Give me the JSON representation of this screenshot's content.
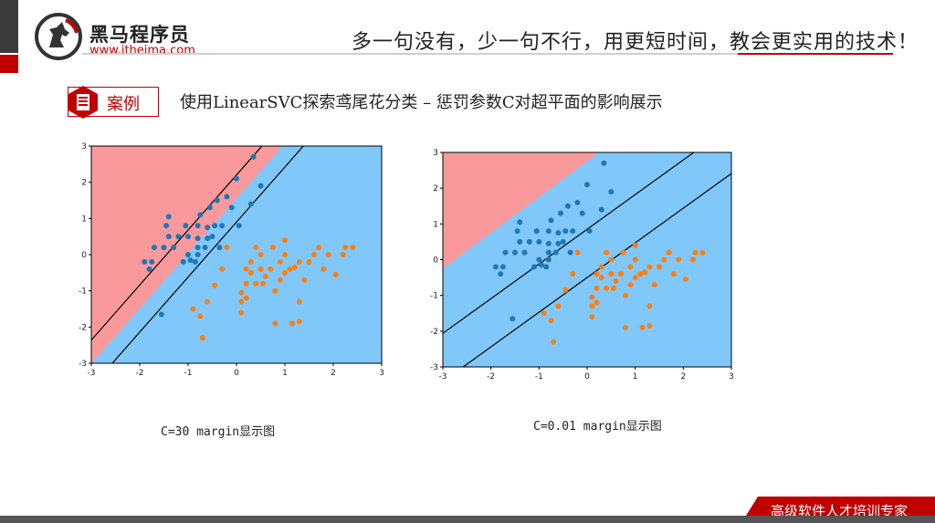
{
  "header": {
    "brand_cn": "黑马程序员",
    "brand_url": "www.itheima.com",
    "slogan": "多一句没有，少一句不行，用更短时间，教会更实用的技术！",
    "logo_icon": "horse-logo-icon"
  },
  "section": {
    "badge_label": "案例",
    "badge_icon": "document-icon",
    "title": "使用LinearSVC探索鸢尾花分类 – 惩罚参数C对超平面的影响展示"
  },
  "footer": {
    "tag": "高级软件人才培训专家"
  },
  "colors": {
    "accent": "#c00000",
    "region_red": "#f9999c",
    "region_blue": "#80c8fa",
    "point_blue": "#1f77b4",
    "point_orange": "#ff7f0e"
  },
  "chart_data": [
    {
      "type": "scatter",
      "caption": "C=30 margin显示图",
      "xlim": [
        -3,
        3
      ],
      "ylim": [
        -3,
        3
      ],
      "xticks": [
        "-3",
        "-2",
        "-1",
        "0",
        "1",
        "2",
        "3"
      ],
      "yticks": [
        "3",
        "2",
        "1",
        "0",
        "-1",
        "-2",
        "-3"
      ],
      "boundary": {
        "slope": 1.52,
        "intercept": 1.55
      },
      "margins": [
        {
          "slope": 1.52,
          "intercept": 2.2
        },
        {
          "slope": 1.52,
          "intercept": 0.9
        }
      ],
      "series": [
        {
          "color": "#1f77b4",
          "points": [
            [
              -1.9,
              -0.2
            ],
            [
              -1.8,
              -0.4
            ],
            [
              -1.75,
              -0.2
            ],
            [
              -1.7,
              0.2
            ],
            [
              -1.5,
              0.2
            ],
            [
              -1.4,
              0.5
            ],
            [
              -1.45,
              0.8
            ],
            [
              -1.4,
              1.05
            ],
            [
              -1.3,
              0.2
            ],
            [
              -1.2,
              0.5
            ],
            [
              -1.1,
              -0.2
            ],
            [
              -1.05,
              0.8
            ],
            [
              -1.0,
              0.0
            ],
            [
              -1.0,
              0.5
            ],
            [
              -0.95,
              -0.15
            ],
            [
              -0.85,
              -0.2
            ],
            [
              -0.8,
              0.0
            ],
            [
              -0.8,
              0.2
            ],
            [
              -0.8,
              0.45
            ],
            [
              -0.8,
              0.8
            ],
            [
              -0.75,
              1.1
            ],
            [
              -0.65,
              0.2
            ],
            [
              -0.6,
              0.45
            ],
            [
              -0.6,
              0.75
            ],
            [
              -0.55,
              1.3
            ],
            [
              -0.5,
              0.5
            ],
            [
              -0.45,
              0.8
            ],
            [
              -0.4,
              1.5
            ],
            [
              -0.35,
              0.2
            ],
            [
              -0.3,
              0.8
            ],
            [
              -0.2,
              1.6
            ],
            [
              -0.1,
              1.3
            ],
            [
              0.05,
              0.8
            ],
            [
              0.0,
              2.1
            ],
            [
              0.3,
              1.4
            ],
            [
              0.35,
              2.7
            ],
            [
              0.5,
              1.9
            ],
            [
              -1.55,
              -1.65
            ]
          ]
        },
        {
          "color": "#ff7f0e",
          "points": [
            [
              -0.7,
              -2.3
            ],
            [
              -0.75,
              -1.7
            ],
            [
              -0.9,
              -1.5
            ],
            [
              -0.6,
              -1.3
            ],
            [
              -0.45,
              -0.85
            ],
            [
              -0.3,
              -0.4
            ],
            [
              -0.2,
              0.2
            ],
            [
              0.1,
              -1.3
            ],
            [
              0.1,
              -1.6
            ],
            [
              0.2,
              -1.2
            ],
            [
              0.1,
              -1.05
            ],
            [
              0.2,
              -0.8
            ],
            [
              0.2,
              -0.4
            ],
            [
              0.3,
              -0.5
            ],
            [
              0.3,
              -0.2
            ],
            [
              0.4,
              0.2
            ],
            [
              0.4,
              -0.8
            ],
            [
              0.5,
              -0.4
            ],
            [
              0.5,
              0.0
            ],
            [
              0.55,
              -0.8
            ],
            [
              0.6,
              -0.6
            ],
            [
              0.7,
              -0.4
            ],
            [
              0.75,
              0.2
            ],
            [
              0.8,
              -1.0
            ],
            [
              0.9,
              -0.2
            ],
            [
              0.9,
              -0.7
            ],
            [
              1.0,
              0.4
            ],
            [
              1.0,
              0.0
            ],
            [
              1.0,
              -0.5
            ],
            [
              1.1,
              -0.4
            ],
            [
              1.2,
              -0.35
            ],
            [
              1.3,
              -0.2
            ],
            [
              1.3,
              -1.3
            ],
            [
              1.4,
              -0.7
            ],
            [
              0.8,
              -1.9
            ],
            [
              1.15,
              -1.9
            ],
            [
              1.3,
              -1.85
            ],
            [
              1.5,
              -0.2
            ],
            [
              1.6,
              0.0
            ],
            [
              1.7,
              0.2
            ],
            [
              1.8,
              -0.4
            ],
            [
              1.9,
              0.0
            ],
            [
              2.05,
              -0.55
            ],
            [
              2.2,
              0.0
            ],
            [
              2.25,
              0.2
            ],
            [
              2.4,
              0.2
            ]
          ]
        }
      ]
    },
    {
      "type": "scatter",
      "caption": "C=0.01 margin显示图",
      "xlim": [
        -3,
        3
      ],
      "ylim": [
        -3,
        3
      ],
      "xticks": [
        "-3",
        "-2",
        "-1",
        "0",
        "1",
        "2",
        "3"
      ],
      "yticks": [
        "3",
        "2",
        "1",
        "0",
        "-1",
        "-2",
        "-3"
      ],
      "boundary": {
        "slope": 1.0,
        "intercept": 2.75
      },
      "margins": [
        {
          "slope": 0.97,
          "intercept": 0.85
        },
        {
          "slope": 0.97,
          "intercept": -0.5
        }
      ],
      "series": [
        {
          "color": "#1f77b4",
          "points": [
            [
              -1.9,
              -0.2
            ],
            [
              -1.8,
              -0.4
            ],
            [
              -1.75,
              -0.2
            ],
            [
              -1.7,
              0.2
            ],
            [
              -1.5,
              0.2
            ],
            [
              -1.4,
              0.5
            ],
            [
              -1.45,
              0.8
            ],
            [
              -1.4,
              1.05
            ],
            [
              -1.3,
              0.2
            ],
            [
              -1.2,
              0.5
            ],
            [
              -1.1,
              -0.2
            ],
            [
              -1.05,
              0.8
            ],
            [
              -1.0,
              0.0
            ],
            [
              -1.0,
              0.5
            ],
            [
              -0.95,
              -0.15
            ],
            [
              -0.85,
              -0.2
            ],
            [
              -0.8,
              0.0
            ],
            [
              -0.8,
              0.2
            ],
            [
              -0.8,
              0.45
            ],
            [
              -0.8,
              0.8
            ],
            [
              -0.75,
              1.1
            ],
            [
              -0.65,
              0.2
            ],
            [
              -0.6,
              0.45
            ],
            [
              -0.6,
              0.75
            ],
            [
              -0.55,
              1.3
            ],
            [
              -0.5,
              0.5
            ],
            [
              -0.45,
              0.8
            ],
            [
              -0.4,
              1.5
            ],
            [
              -0.35,
              0.2
            ],
            [
              -0.3,
              0.8
            ],
            [
              -0.2,
              1.6
            ],
            [
              -0.1,
              1.3
            ],
            [
              0.05,
              0.8
            ],
            [
              0.0,
              2.1
            ],
            [
              0.3,
              1.4
            ],
            [
              0.35,
              2.7
            ],
            [
              0.5,
              1.9
            ],
            [
              -1.55,
              -1.65
            ]
          ]
        },
        {
          "color": "#ff7f0e",
          "points": [
            [
              -0.7,
              -2.3
            ],
            [
              -0.75,
              -1.7
            ],
            [
              -0.9,
              -1.5
            ],
            [
              -0.6,
              -1.3
            ],
            [
              -0.45,
              -0.85
            ],
            [
              -0.3,
              -0.4
            ],
            [
              -0.2,
              0.2
            ],
            [
              0.1,
              -1.3
            ],
            [
              0.1,
              -1.6
            ],
            [
              0.2,
              -1.2
            ],
            [
              0.1,
              -1.05
            ],
            [
              0.2,
              -0.8
            ],
            [
              0.2,
              -0.4
            ],
            [
              0.3,
              -0.5
            ],
            [
              0.3,
              -0.2
            ],
            [
              0.4,
              0.2
            ],
            [
              0.4,
              -0.8
            ],
            [
              0.5,
              -0.4
            ],
            [
              0.5,
              0.0
            ],
            [
              0.55,
              -0.8
            ],
            [
              0.6,
              -0.6
            ],
            [
              0.7,
              -0.4
            ],
            [
              0.75,
              0.2
            ],
            [
              0.8,
              -1.0
            ],
            [
              0.9,
              -0.2
            ],
            [
              0.9,
              -0.7
            ],
            [
              1.0,
              0.4
            ],
            [
              1.0,
              0.0
            ],
            [
              1.0,
              -0.5
            ],
            [
              1.1,
              -0.4
            ],
            [
              1.2,
              -0.35
            ],
            [
              1.3,
              -0.2
            ],
            [
              1.3,
              -1.3
            ],
            [
              1.4,
              -0.7
            ],
            [
              0.8,
              -1.9
            ],
            [
              1.15,
              -1.9
            ],
            [
              1.3,
              -1.85
            ],
            [
              1.5,
              -0.2
            ],
            [
              1.6,
              0.0
            ],
            [
              1.7,
              0.2
            ],
            [
              1.8,
              -0.4
            ],
            [
              1.9,
              0.0
            ],
            [
              2.05,
              -0.55
            ],
            [
              2.2,
              0.0
            ],
            [
              2.25,
              0.2
            ],
            [
              2.4,
              0.2
            ]
          ]
        }
      ]
    }
  ]
}
